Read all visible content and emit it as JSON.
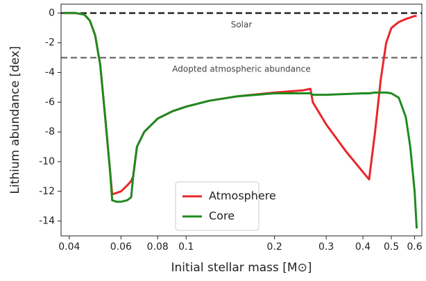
{
  "chart_data": {
    "type": "line",
    "xlabel": "Initial stellar mass [M⊙]",
    "ylabel": "Lithium abundance [dex]",
    "x": [
      0.038,
      0.042,
      0.045,
      0.047,
      0.049,
      0.051,
      0.053,
      0.055,
      0.056,
      0.058,
      0.06,
      0.063,
      0.065,
      0.066,
      0.068,
      0.072,
      0.08,
      0.09,
      0.1,
      0.12,
      0.15,
      0.2,
      0.25,
      0.265,
      0.27,
      0.3,
      0.35,
      0.4,
      0.42,
      0.44,
      0.46,
      0.48,
      0.5,
      0.53,
      0.56,
      0.58,
      0.6,
      0.61
    ],
    "series": [
      {
        "name": "Atmosphere",
        "color": "#e8262a",
        "values": [
          0,
          0,
          -0.1,
          -0.5,
          -1.5,
          -3.5,
          -7,
          -10.5,
          -12.2,
          -12.1,
          -12.0,
          -11.6,
          -11.3,
          -11,
          -9,
          -8,
          -7.1,
          -6.6,
          -6.3,
          -5.9,
          -5.6,
          -5.35,
          -5.2,
          -5.1,
          -6.0,
          -7.5,
          -9.3,
          -10.7,
          -11.2,
          -8,
          -4.5,
          -2,
          -1.0,
          -0.6,
          -0.4,
          -0.3,
          -0.2,
          -0.2
        ]
      },
      {
        "name": "Core",
        "color": "#1f8a1f",
        "values": [
          0,
          0,
          -0.1,
          -0.5,
          -1.5,
          -3.5,
          -7,
          -10.5,
          -12.6,
          -12.7,
          -12.7,
          -12.6,
          -12.4,
          -11,
          -9,
          -8,
          -7.1,
          -6.6,
          -6.3,
          -5.9,
          -5.6,
          -5.4,
          -5.4,
          -5.4,
          -5.5,
          -5.5,
          -5.45,
          -5.4,
          -5.4,
          -5.35,
          -5.35,
          -5.35,
          -5.4,
          -5.7,
          -7,
          -9,
          -12,
          -14.5
        ]
      }
    ],
    "hlines": [
      {
        "value": 0,
        "label": "Solar"
      },
      {
        "value": -3,
        "label": "Adopted atmospheric abundance"
      }
    ],
    "xscale": "log",
    "xlim": [
      0.0375,
      0.635
    ],
    "xticks": [
      0.04,
      0.06,
      0.08,
      0.1,
      0.2,
      0.3,
      0.4,
      0.5,
      0.6
    ],
    "ylim": [
      -15,
      0.6
    ],
    "yticks": [
      0,
      -2,
      -4,
      -6,
      -8,
      -10,
      -12,
      -14
    ],
    "legend": "lower center"
  }
}
